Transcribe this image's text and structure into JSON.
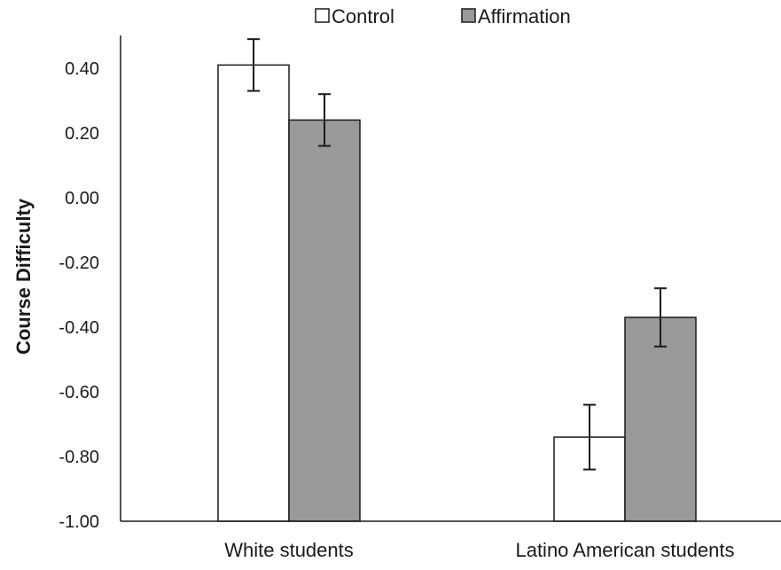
{
  "chart_data": {
    "type": "bar",
    "title": "",
    "xlabel": "",
    "ylabel": "Course Difficulty",
    "ylim": [
      -1.0,
      0.5
    ],
    "yticks": [
      "0.40",
      "0.20",
      "0.00",
      "-0.20",
      "-0.40",
      "-0.60",
      "-0.80",
      "-1.00"
    ],
    "ytick_values": [
      0.4,
      0.2,
      0.0,
      -0.2,
      -0.4,
      -0.6,
      -0.8,
      -1.0
    ],
    "categories": [
      "White students",
      "Latino American students"
    ],
    "series": [
      {
        "name": "Control",
        "color": "#ffffff",
        "values": [
          0.41,
          -0.74
        ],
        "error": [
          0.08,
          0.1
        ]
      },
      {
        "name": "Affirmation",
        "color": "#999999",
        "values": [
          0.24,
          -0.37
        ],
        "error": [
          0.08,
          0.09
        ]
      }
    ],
    "grid": false,
    "legend_position": "top",
    "bar_edge_color": "#1a1a1a"
  }
}
